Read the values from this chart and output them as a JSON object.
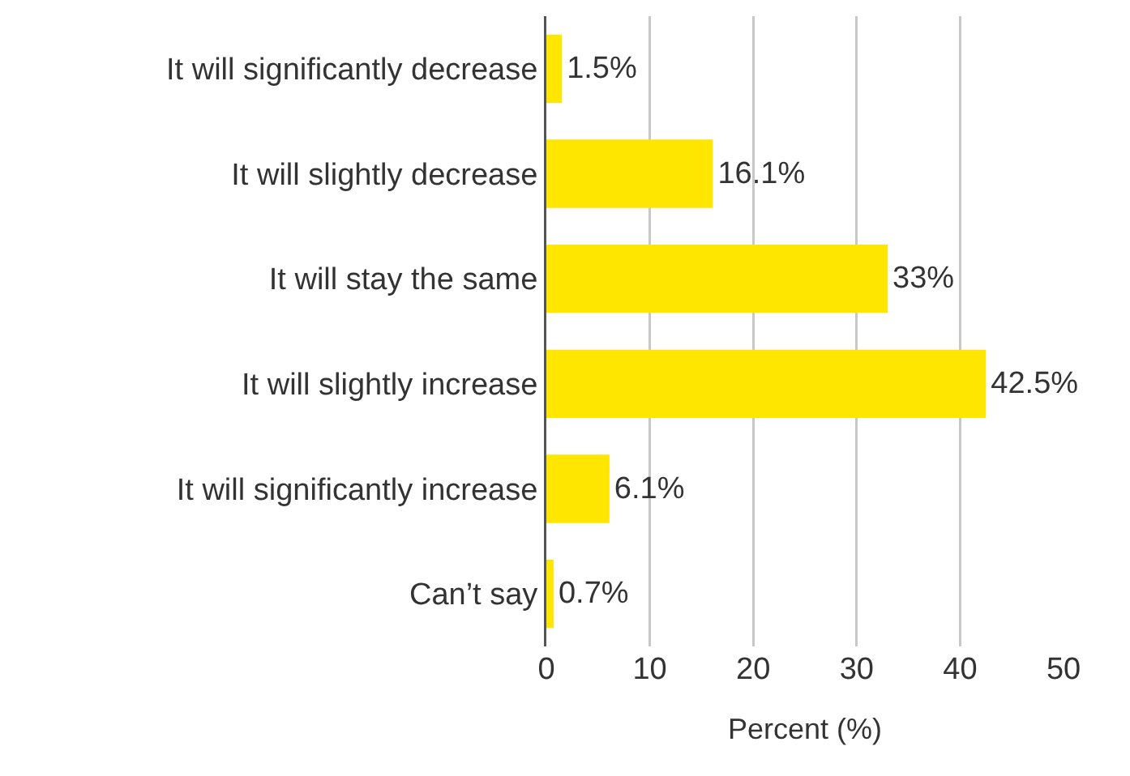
{
  "chart_data": {
    "type": "bar",
    "orientation": "horizontal",
    "xlabel": "Percent (%)",
    "categories": [
      "It will significantly decrease",
      "It will slightly decrease",
      "It will stay the same",
      "It will slightly increase",
      "It will significantly increase",
      "Can’t say"
    ],
    "values": [
      1.5,
      16.1,
      33,
      42.5,
      6.1,
      0.7
    ],
    "value_labels": [
      "1.5%",
      "16.1%",
      "33%",
      "42.5%",
      "6.1%",
      "0.7%"
    ],
    "color": "#ffe600",
    "xlim": [
      0,
      50
    ],
    "xticks": [
      0,
      10,
      20,
      30,
      40,
      50
    ],
    "grid": "x"
  }
}
